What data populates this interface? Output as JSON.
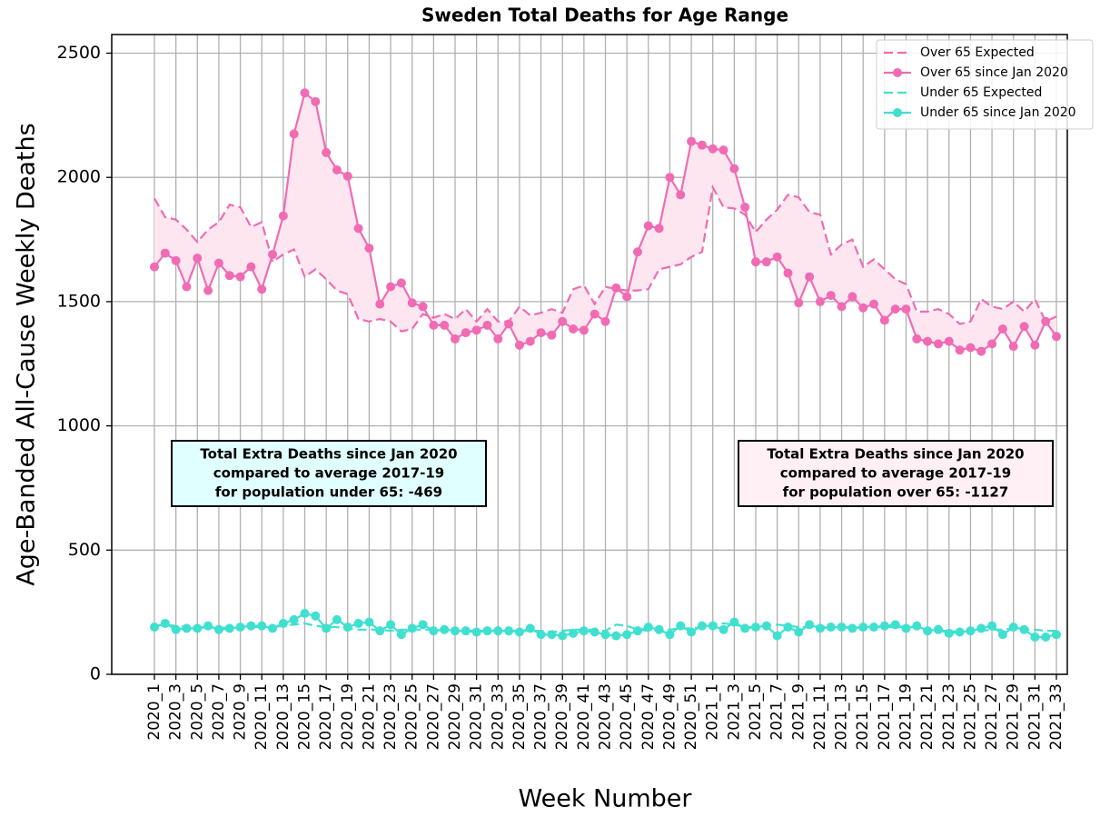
{
  "chart_data": {
    "type": "line",
    "title": "Sweden Total Deaths for Age Range",
    "x_label": "Week Number",
    "y_label": "Age-Banded All-Cause Weekly Deaths",
    "categories": [
      "2020_1",
      null,
      "2020_3",
      null,
      "2020_5",
      null,
      "2020_7",
      null,
      "2020_9",
      null,
      "2020_11",
      null,
      "2020_13",
      null,
      "2020_15",
      null,
      "2020_17",
      null,
      "2020_19",
      null,
      "2020_21",
      null,
      "2020_23",
      null,
      "2020_25",
      null,
      "2020_27",
      null,
      "2020_29",
      null,
      "2020_31",
      null,
      "2020_33",
      null,
      "2020_35",
      null,
      "2020_37",
      null,
      "2020_39",
      null,
      "2020_41",
      null,
      "2020_43",
      null,
      "2020_45",
      null,
      "2020_47",
      null,
      "2020_49",
      null,
      "2020_51",
      null,
      "2021_1",
      null,
      "2021_3",
      null,
      "2021_5",
      null,
      "2021_7",
      null,
      "2021_9",
      null,
      "2021_11",
      null,
      "2021_13",
      null,
      "2021_15",
      null,
      "2021_17",
      null,
      "2021_19",
      null,
      "2021_21",
      null,
      "2021_23",
      null,
      "2021_25",
      null,
      "2021_27",
      null,
      "2021_29",
      null,
      "2021_31",
      null,
      "2021_33"
    ],
    "series": [
      {
        "name": "Over 65 Expected",
        "color": "#f06bb4",
        "linestyle": "dashed",
        "marker": false,
        "values": [
          1915,
          1840,
          1830,
          1790,
          1740,
          1790,
          1820,
          1890,
          1880,
          1800,
          1820,
          1660,
          1690,
          1710,
          1600,
          1630,
          1590,
          1545,
          1530,
          1430,
          1420,
          1430,
          1420,
          1380,
          1390,
          1450,
          1435,
          1450,
          1430,
          1470,
          1420,
          1470,
          1420,
          1420,
          1480,
          1445,
          1455,
          1470,
          1455,
          1550,
          1565,
          1490,
          1560,
          1550,
          1545,
          1545,
          1550,
          1630,
          1640,
          1650,
          1680,
          1700,
          1960,
          1880,
          1875,
          1850,
          1780,
          1830,
          1870,
          1930,
          1920,
          1860,
          1850,
          1690,
          1730,
          1750,
          1640,
          1670,
          1630,
          1590,
          1570,
          1460,
          1460,
          1470,
          1450,
          1410,
          1420,
          1510,
          1480,
          1470,
          1500,
          1460,
          1510,
          1420,
          1440
        ]
      },
      {
        "name": "Over 65 since Jan 2020",
        "color": "#f06bb4",
        "linestyle": "solid",
        "marker": true,
        "values": [
          1640,
          1695,
          1665,
          1560,
          1675,
          1545,
          1655,
          1605,
          1600,
          1640,
          1550,
          1690,
          1845,
          2175,
          2340,
          2305,
          2100,
          2030,
          2005,
          1795,
          1715,
          1490,
          1560,
          1575,
          1495,
          1480,
          1405,
          1405,
          1350,
          1375,
          1385,
          1405,
          1350,
          1410,
          1325,
          1340,
          1375,
          1365,
          1420,
          1390,
          1385,
          1450,
          1420,
          1555,
          1520,
          1700,
          1805,
          1795,
          2000,
          1930,
          2145,
          2130,
          2115,
          2110,
          2035,
          1880,
          1660,
          1660,
          1680,
          1615,
          1495,
          1600,
          1500,
          1525,
          1480,
          1520,
          1475,
          1490,
          1425,
          1470,
          1470,
          1350,
          1340,
          1330,
          1340,
          1305,
          1315,
          1300,
          1330,
          1390,
          1320,
          1400,
          1325,
          1420,
          1360
        ]
      },
      {
        "name": "Under 65 Expected",
        "color": "#40e0d0",
        "linestyle": "dashed",
        "marker": false,
        "values": [
          195,
          200,
          195,
          190,
          185,
          190,
          185,
          190,
          185,
          190,
          190,
          190,
          195,
          200,
          205,
          195,
          190,
          190,
          185,
          180,
          180,
          180,
          175,
          180,
          180,
          180,
          180,
          175,
          175,
          175,
          175,
          175,
          175,
          175,
          175,
          175,
          175,
          170,
          175,
          180,
          180,
          180,
          175,
          200,
          195,
          180,
          175,
          180,
          180,
          185,
          185,
          190,
          200,
          205,
          200,
          190,
          190,
          195,
          200,
          195,
          190,
          190,
          190,
          190,
          190,
          190,
          190,
          190,
          190,
          190,
          190,
          190,
          180,
          175,
          175,
          170,
          170,
          175,
          180,
          180,
          185,
          180,
          180,
          175,
          175
        ]
      },
      {
        "name": "Under 65 since Jan 2020",
        "color": "#40e0d0",
        "linestyle": "solid",
        "marker": true,
        "values": [
          190,
          205,
          180,
          185,
          185,
          195,
          180,
          185,
          190,
          195,
          195,
          185,
          205,
          220,
          245,
          235,
          185,
          220,
          190,
          205,
          210,
          175,
          200,
          160,
          185,
          200,
          175,
          180,
          175,
          175,
          170,
          175,
          175,
          175,
          170,
          185,
          160,
          160,
          155,
          165,
          175,
          170,
          160,
          155,
          160,
          175,
          190,
          180,
          160,
          195,
          170,
          195,
          195,
          180,
          210,
          185,
          190,
          195,
          155,
          190,
          170,
          200,
          185,
          190,
          190,
          185,
          190,
          190,
          195,
          200,
          185,
          195,
          175,
          180,
          165,
          170,
          175,
          185,
          195,
          160,
          190,
          180,
          150,
          150,
          160
        ]
      }
    ],
    "fill_between": {
      "color": "#fde6ef"
    },
    "annotations": [
      {
        "lines": [
          "Total Extra Deaths since Jan 2020",
          "compared to average 2017-19",
          "for population under 65: -469"
        ],
        "color": "#e0ffff"
      },
      {
        "lines": [
          "Total Extra Deaths since Jan 2020",
          "compared to average 2017-19",
          "for population over 65: -1127"
        ],
        "color": "#fff0f5"
      }
    ],
    "ylim": [
      0,
      2575
    ],
    "yticks": [
      0,
      500,
      1000,
      1500,
      2000,
      2500
    ],
    "grid": true,
    "legend": "upper right"
  }
}
